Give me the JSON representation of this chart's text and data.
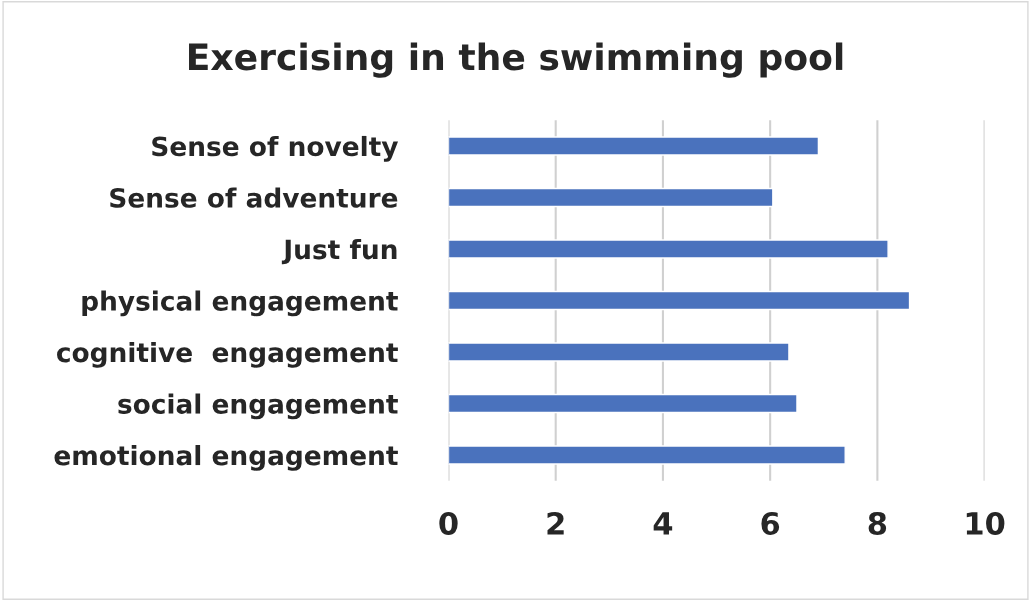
{
  "chart_data": {
    "type": "bar",
    "orientation": "horizontal",
    "title": "Exercising in the swimming pool",
    "categories": [
      "Sense of novelty",
      "Sense of adventure",
      "Just fun",
      "physical engagement",
      "cognitive  engagement",
      "social engagement",
      "emotional engagement"
    ],
    "values": [
      6.9,
      6.05,
      8.2,
      8.6,
      6.35,
      6.5,
      7.4
    ],
    "color": "#4a72bd",
    "xlim": [
      0,
      10
    ],
    "xticks": [
      0,
      2,
      4,
      6,
      8,
      10
    ],
    "grid": "x"
  }
}
